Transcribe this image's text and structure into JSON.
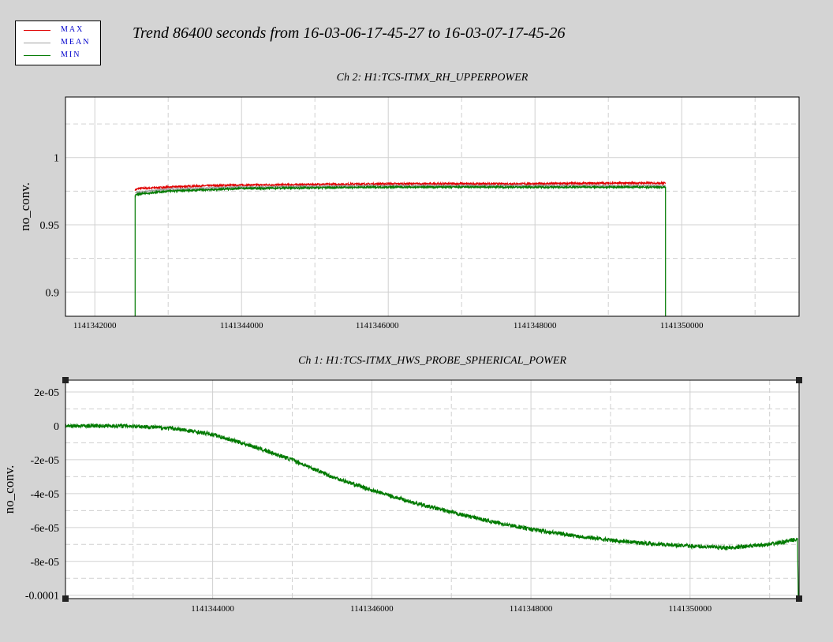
{
  "title": "Trend 86400 seconds from 16-03-06-17-45-27 to 16-03-07-17-45-26",
  "legend": [
    {
      "label": "MAX",
      "color": "#e00000"
    },
    {
      "label": "MEAN",
      "color": "#a0a0a0"
    },
    {
      "label": "MIN",
      "color": "#007a00"
    }
  ],
  "chart_data": [
    {
      "type": "line",
      "title": "Ch 2: H1:TCS-ITMX_RH_UPPERPOWER",
      "ylabel": "no_conv.",
      "xlabel": "",
      "xlim": [
        1141341600,
        1141351600
      ],
      "ylim": [
        0.882,
        1.045
      ],
      "grid": true,
      "xticks": [
        "1141342000",
        "1141344000",
        "1141346000",
        "1141348000",
        "1141350000"
      ],
      "xtick_values": [
        1141342000,
        1141344000,
        1141346000,
        1141348000,
        1141350000
      ],
      "yticks": [
        "1",
        "0.95",
        "0.9"
      ],
      "ytick_values": [
        1,
        0.95,
        0.9
      ],
      "series": [
        {
          "name": "MAX",
          "color": "#e00000",
          "x": [
            1141342550,
            1141342600,
            1141343000,
            1141343500,
            1141344000,
            1141345000,
            1141346000,
            1141347000,
            1141348000,
            1141349000,
            1141349780
          ],
          "y": [
            0.976,
            0.977,
            0.978,
            0.979,
            0.9795,
            0.98,
            0.9805,
            0.9805,
            0.9805,
            0.981,
            0.981
          ]
        },
        {
          "name": "MEAN",
          "color": "#a0a0a0",
          "x": [
            1141342550,
            1141343000,
            1141344000,
            1141345000,
            1141346000,
            1141347000,
            1141348000,
            1141349000,
            1141349780
          ],
          "y": [
            0.974,
            0.9765,
            0.978,
            0.9785,
            0.979,
            0.979,
            0.979,
            0.979,
            0.979
          ]
        },
        {
          "name": "MIN",
          "color": "#007a00",
          "x": [
            1141342550,
            1141342550,
            1141342600,
            1141343000,
            1141343500,
            1141344000,
            1141345000,
            1141346000,
            1141347000,
            1141348000,
            1141349000,
            1141349780,
            1141349780
          ],
          "y": [
            0.88,
            0.972,
            0.973,
            0.975,
            0.976,
            0.977,
            0.9775,
            0.978,
            0.978,
            0.978,
            0.978,
            0.978,
            0.88
          ]
        }
      ]
    },
    {
      "type": "line",
      "title": "Ch 1: H1:TCS-ITMX_HWS_PROBE_SPHERICAL_POWER",
      "ylabel": "no_conv.",
      "xlabel": "",
      "xlim": [
        1141342150,
        1141351370
      ],
      "ylim": [
        -0.000102,
        2.7e-05
      ],
      "grid": true,
      "xticks": [
        "1141344000",
        "1141346000",
        "1141348000",
        "1141350000"
      ],
      "xtick_values": [
        1141344000,
        1141346000,
        1141348000,
        1141350000
      ],
      "yticks": [
        "2e-05",
        "0",
        "-2e-05",
        "-4e-05",
        "-6e-05",
        "-8e-05",
        "-0.0001"
      ],
      "ytick_values": [
        2e-05,
        0,
        -2e-05,
        -4e-05,
        -6e-05,
        -8e-05,
        -0.0001
      ],
      "series": [
        {
          "name": "MIN",
          "color": "#007a00",
          "x": [
            1141342150,
            1141342500,
            1141343000,
            1141343500,
            1141344000,
            1141344500,
            1141345000,
            1141345500,
            1141346000,
            1141346500,
            1141347000,
            1141347500,
            1141348000,
            1141348500,
            1141349000,
            1141349500,
            1141350000,
            1141350500,
            1141351000,
            1141351350,
            1141351360
          ],
          "y": [
            0,
            0,
            0,
            -1.5e-06,
            -5e-06,
            -1.2e-05,
            -2e-05,
            -3e-05,
            -3.8e-05,
            -4.5e-05,
            -5.1e-05,
            -5.65e-05,
            -6.1e-05,
            -6.45e-05,
            -6.75e-05,
            -6.95e-05,
            -7.1e-05,
            -7.2e-05,
            -7e-05,
            -6.7e-05,
            -0.000102
          ]
        }
      ]
    }
  ]
}
